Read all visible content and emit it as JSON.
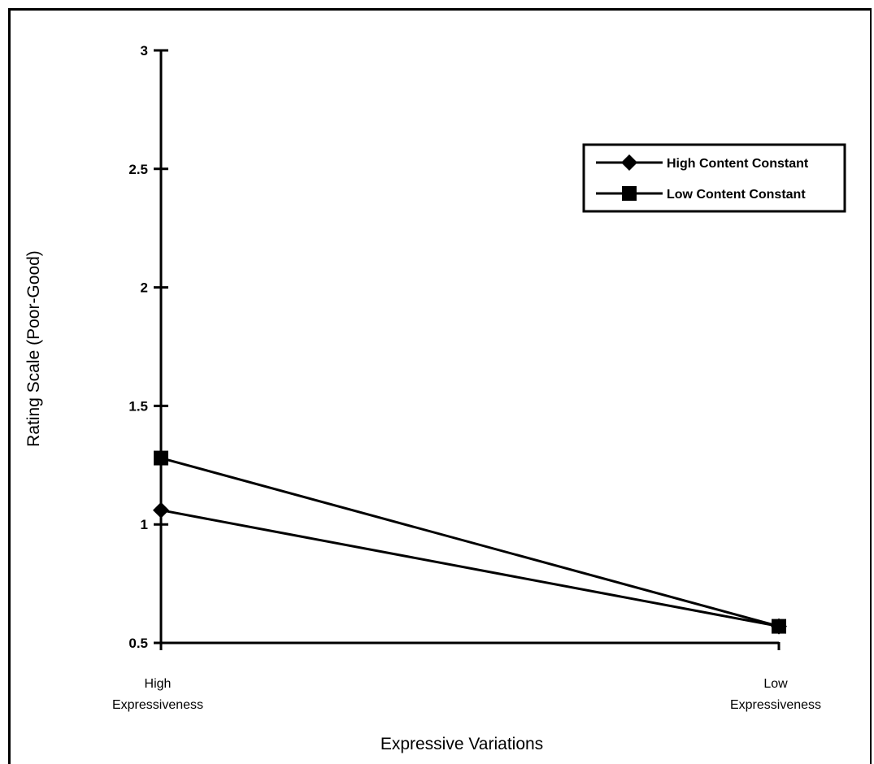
{
  "chart_data": {
    "type": "line",
    "title": "",
    "xlabel": "Expressive Variations",
    "ylabel": "Rating Scale (Poor-Good)",
    "categories": [
      [
        "High",
        "Expressiveness"
      ],
      [
        "Low",
        "Expressiveness"
      ]
    ],
    "y_ticks": [
      "0.5",
      "1",
      "1.5",
      "2",
      "2.5",
      "3"
    ],
    "ylim": [
      0.5,
      3
    ],
    "grid": false,
    "legend_position": "top-right",
    "series": [
      {
        "name": "High Content Constant",
        "marker": "diamond",
        "values": [
          1.06,
          0.57
        ]
      },
      {
        "name": "Low Content Constant",
        "marker": "square",
        "values": [
          1.28,
          0.57
        ]
      }
    ],
    "colors": {
      "line": "#000000",
      "background": "#ffffff"
    }
  }
}
